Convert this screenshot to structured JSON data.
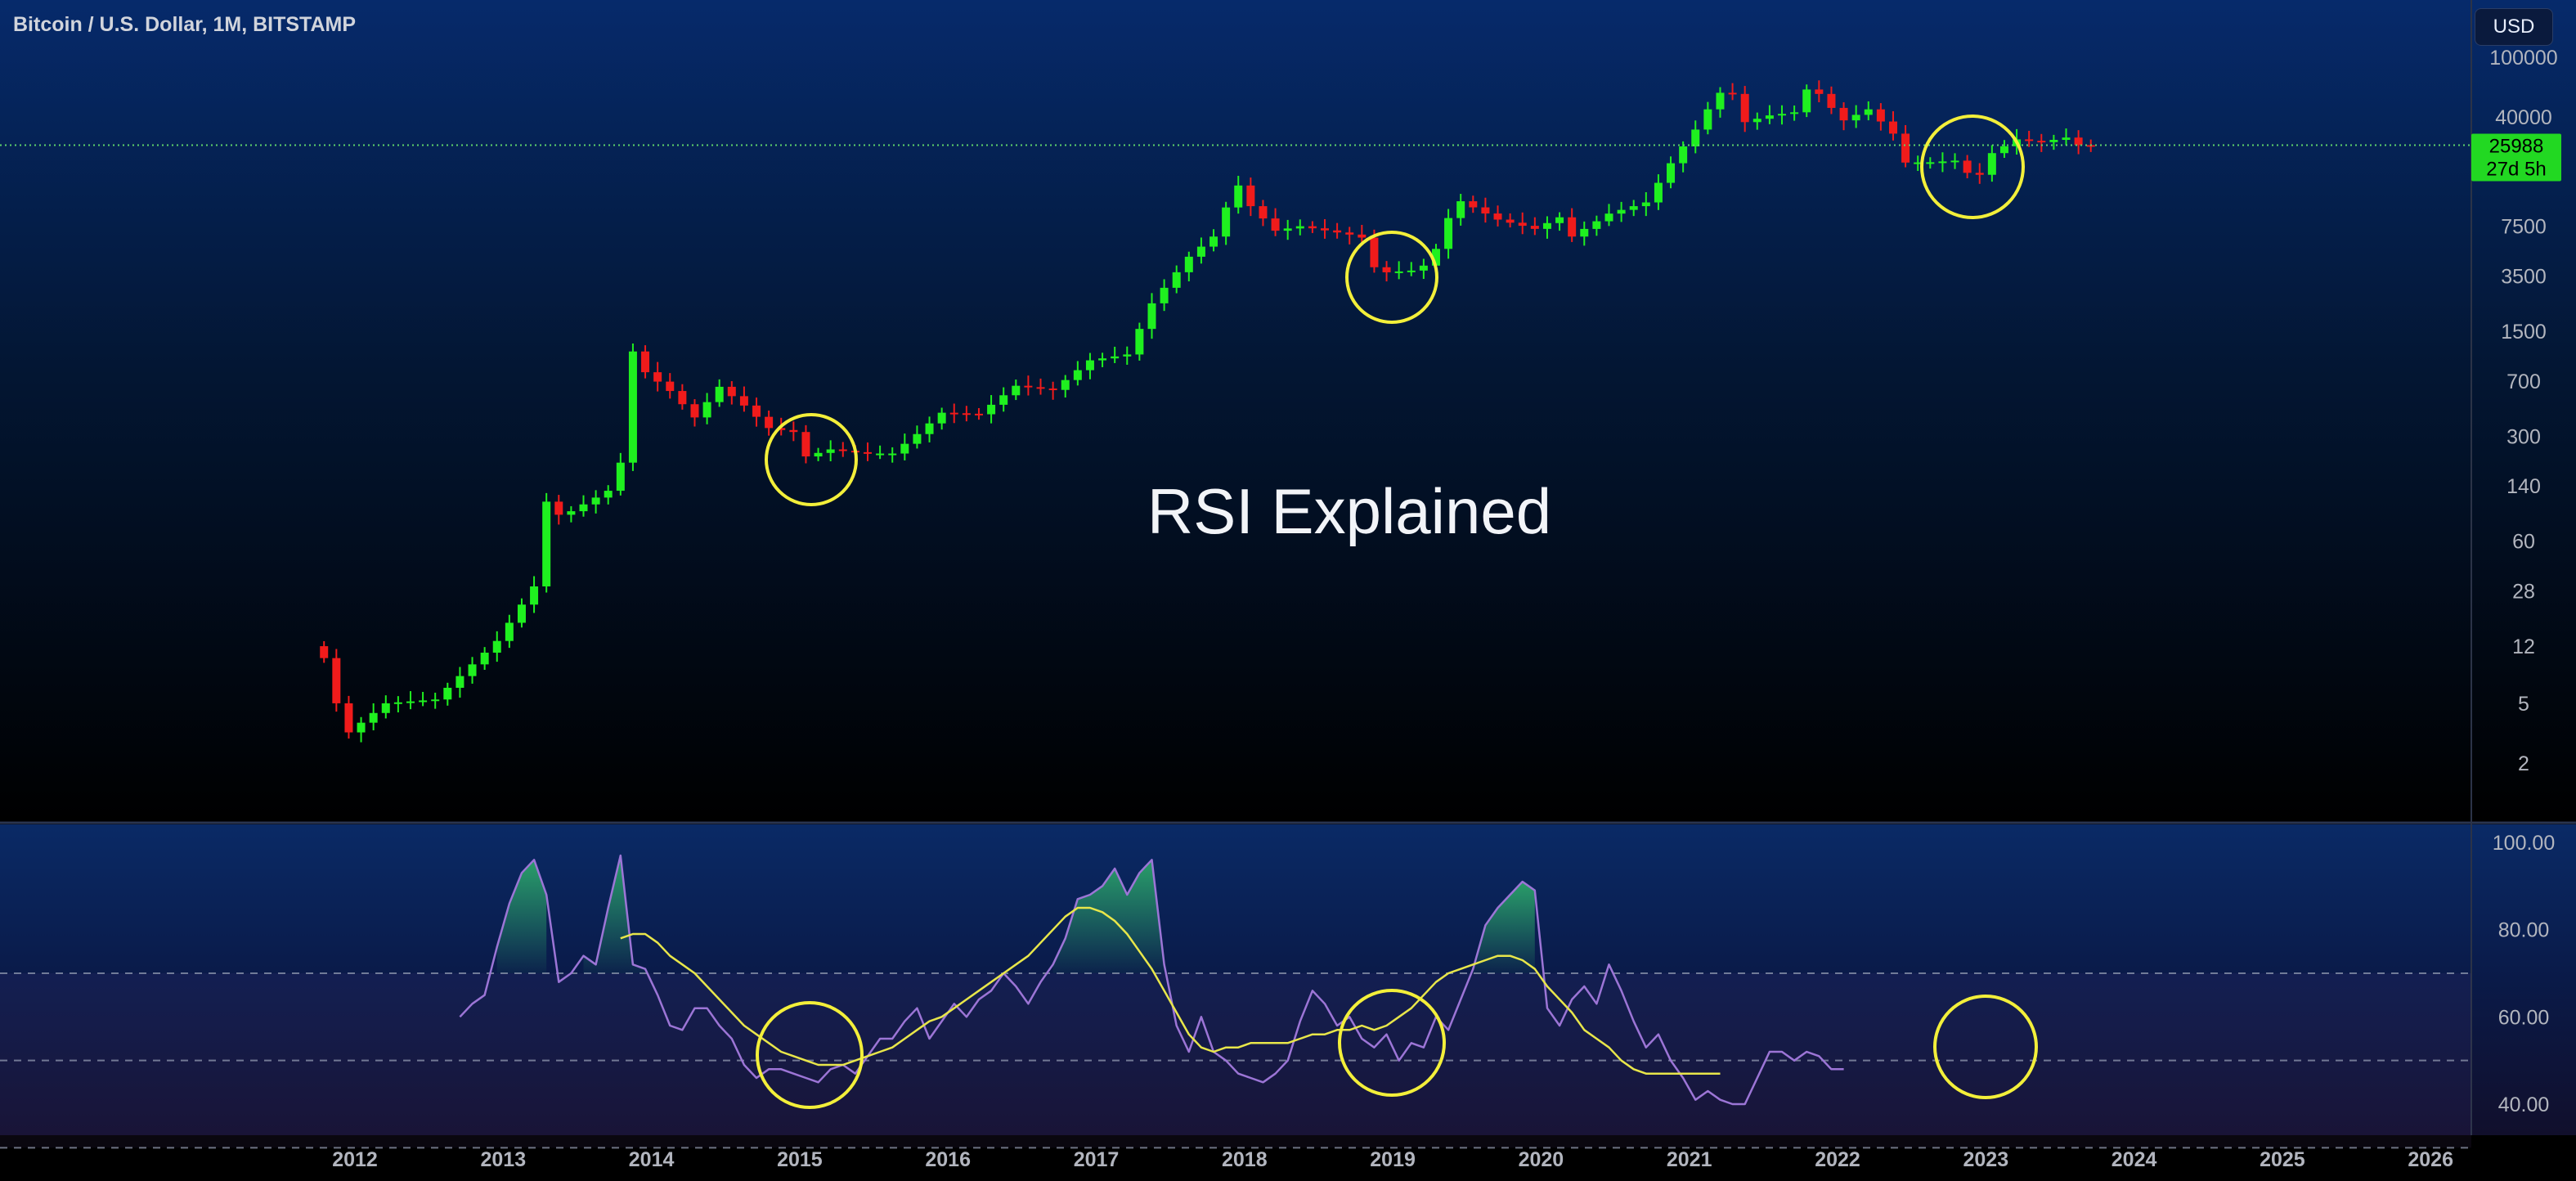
{
  "header": {
    "title": "Bitcoin / U.S. Dollar, 1M, BITSTAMP"
  },
  "currency_button": "USD",
  "overlay_title": "RSI Explained",
  "price_label": {
    "value": "25988",
    "countdown": "27d 5h"
  },
  "colors": {
    "up": "#1ff01f",
    "down": "#f01b1b",
    "rsi": "#9c75d6",
    "rsi_ma": "#e8e64a",
    "circle": "#f3ef3a",
    "last_price_line": "#5fd36a"
  },
  "chart_data": [
    {
      "type": "candlestick",
      "name": "price",
      "scale": "log",
      "y_ticks": [
        2,
        5,
        12,
        28,
        60,
        140,
        300,
        700,
        1500,
        3500,
        7500,
        40000,
        100000
      ],
      "x_ticks": [
        "2012",
        "2013",
        "2014",
        "2015",
        "2016",
        "2017",
        "2018",
        "2019",
        "2020",
        "2021",
        "2022",
        "2023",
        "2024",
        "2025",
        "2026"
      ],
      "last_price": 25988,
      "time_range": [
        "2011-10",
        "2023-09"
      ],
      "anchors": [
        [
          "2011-10",
          10
        ],
        [
          "2011-11",
          5
        ],
        [
          "2011-12",
          3.2
        ],
        [
          "2012-03",
          5
        ],
        [
          "2012-07",
          5.3
        ],
        [
          "2012-12",
          13
        ],
        [
          "2013-03",
          30
        ],
        [
          "2013-04",
          110
        ],
        [
          "2013-05",
          90
        ],
        [
          "2013-06",
          95
        ],
        [
          "2013-09",
          130
        ],
        [
          "2013-10",
          200
        ],
        [
          "2013-11",
          1100
        ],
        [
          "2013-12",
          800
        ],
        [
          "2014-02",
          600
        ],
        [
          "2014-04",
          400
        ],
        [
          "2014-06",
          640
        ],
        [
          "2014-08",
          480
        ],
        [
          "2014-10",
          340
        ],
        [
          "2014-12",
          320
        ],
        [
          "2015-01",
          220
        ],
        [
          "2015-03",
          245
        ],
        [
          "2015-06",
          230
        ],
        [
          "2015-08",
          230
        ],
        [
          "2015-10",
          310
        ],
        [
          "2015-12",
          430
        ],
        [
          "2016-03",
          420
        ],
        [
          "2016-06",
          650
        ],
        [
          "2016-09",
          610
        ],
        [
          "2016-12",
          960
        ],
        [
          "2017-03",
          1050
        ],
        [
          "2017-05",
          2300
        ],
        [
          "2017-08",
          4700
        ],
        [
          "2017-10",
          6400
        ],
        [
          "2017-11",
          10000
        ],
        [
          "2017-12",
          14000
        ],
        [
          "2018-01",
          10200
        ],
        [
          "2018-03",
          7000
        ],
        [
          "2018-05",
          7500
        ],
        [
          "2018-09",
          6600
        ],
        [
          "2018-10",
          6300
        ],
        [
          "2018-11",
          4000
        ],
        [
          "2018-12",
          3700
        ],
        [
          "2019-02",
          3800
        ],
        [
          "2019-03",
          4100
        ],
        [
          "2019-04",
          5300
        ],
        [
          "2019-05",
          8500
        ],
        [
          "2019-06",
          11000
        ],
        [
          "2019-09",
          8300
        ],
        [
          "2019-12",
          7200
        ],
        [
          "2020-02",
          8600
        ],
        [
          "2020-03",
          6400
        ],
        [
          "2020-06",
          9100
        ],
        [
          "2020-09",
          10800
        ],
        [
          "2020-11",
          19700
        ],
        [
          "2021-01",
          33000
        ],
        [
          "2021-02",
          45000
        ],
        [
          "2021-03",
          58000
        ],
        [
          "2021-04",
          57000
        ],
        [
          "2021-05",
          37000
        ],
        [
          "2021-07",
          41000
        ],
        [
          "2021-09",
          43000
        ],
        [
          "2021-10",
          61000
        ],
        [
          "2021-11",
          57000
        ],
        [
          "2021-12",
          46000
        ],
        [
          "2022-01",
          38000
        ],
        [
          "2022-03",
          45000
        ],
        [
          "2022-05",
          31000
        ],
        [
          "2022-06",
          19900
        ],
        [
          "2022-08",
          20000
        ],
        [
          "2022-10",
          20500
        ],
        [
          "2022-11",
          17000
        ],
        [
          "2022-12",
          16500
        ],
        [
          "2023-01",
          23000
        ],
        [
          "2023-03",
          28400
        ],
        [
          "2023-05",
          27200
        ],
        [
          "2023-07",
          29200
        ],
        [
          "2023-08",
          26000
        ],
        [
          "2023-09",
          25988
        ]
      ]
    },
    {
      "type": "line",
      "name": "RSI",
      "y_ticks": [
        40,
        60,
        80,
        100
      ],
      "y_range": [
        28,
        102
      ],
      "bands": [
        30,
        50,
        70
      ],
      "series": [
        {
          "role": "rsi",
          "start": "2012-09",
          "values": [
            60,
            63,
            65,
            76,
            86,
            93,
            96,
            88,
            68,
            70,
            74,
            72,
            85,
            97,
            72,
            71,
            65,
            58,
            57,
            62,
            62,
            58,
            55,
            49,
            46,
            48,
            48,
            47,
            46,
            45,
            48,
            49,
            47,
            51,
            55,
            55,
            59,
            62,
            55,
            59,
            63,
            60,
            64,
            66,
            70,
            67,
            63,
            68,
            72,
            78,
            87,
            88,
            90,
            94,
            88,
            93,
            96,
            72,
            58,
            52,
            60,
            52,
            50,
            47,
            46,
            45,
            47,
            50,
            59,
            66,
            63,
            58,
            60,
            55,
            53,
            56,
            50,
            54,
            53,
            60,
            57,
            64,
            71,
            81,
            85,
            88,
            91,
            89,
            62,
            58,
            64,
            67,
            63,
            72,
            66,
            59,
            53,
            56,
            50,
            46,
            41,
            43,
            41,
            40,
            40,
            46,
            52,
            52,
            50,
            52,
            51,
            48,
            48
          ]
        },
        {
          "role": "ma",
          "start": "2013-10",
          "values": [
            78,
            79,
            79,
            77,
            74,
            72,
            70,
            67,
            64,
            61,
            58,
            56,
            54,
            52,
            51,
            50,
            49,
            49,
            49,
            50,
            51,
            52,
            53,
            55,
            57,
            59,
            60,
            62,
            64,
            66,
            68,
            70,
            72,
            74,
            77,
            80,
            83,
            85,
            85,
            84,
            82,
            79,
            75,
            71,
            66,
            61,
            56,
            53,
            52,
            53,
            53,
            54,
            54,
            54,
            54,
            55,
            56,
            56,
            57,
            57,
            58,
            57,
            58,
            60,
            62,
            65,
            68,
            70,
            71,
            72,
            73,
            74,
            74,
            73,
            71,
            67,
            64,
            61,
            57,
            55,
            53,
            50,
            48,
            47,
            47,
            47,
            47,
            47,
            47,
            47
          ]
        }
      ]
    }
  ]
}
